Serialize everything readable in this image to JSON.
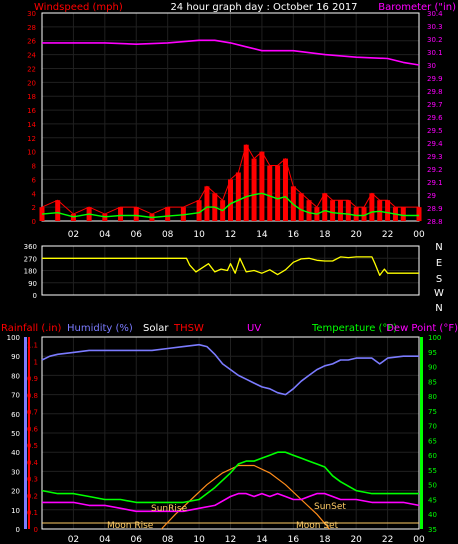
{
  "title": "24 hour graph day : October 16 2017",
  "colors": {
    "wind": "#ff0000",
    "gust": "#ff0000",
    "windavg": "#00ff00",
    "barometer": "#ff00ff",
    "direction": "#ffff00",
    "rain": "#ff0000",
    "humidity": "#7b7bff",
    "solar": "#ffffff",
    "thsw": "#ff0000",
    "uv": "#ff00ff",
    "temperature": "#00ff00",
    "dewpoint": "#ff00ff",
    "sun": "#ff8c1a",
    "frame": "#ffffff",
    "grid": "#202020"
  },
  "time_ticks": [
    "02",
    "04",
    "06",
    "08",
    "10",
    "12",
    "14",
    "16",
    "18",
    "20",
    "22",
    "00"
  ],
  "chart_data": [
    {
      "type": "line",
      "name": "wind-barometer",
      "left_label": "Windspeed (mph)",
      "right_label": "Barometer (\"in)",
      "left_ticks": [
        "0",
        "2",
        "4",
        "6",
        "8",
        "10",
        "12",
        "14",
        "16",
        "18",
        "20",
        "22",
        "24",
        "26",
        "28",
        "30"
      ],
      "right_ticks": [
        "28.8",
        "28.9",
        "29",
        "29.1",
        "29.2",
        "29.3",
        "29.4",
        "29.5",
        "29.6",
        "29.7",
        "29.8",
        "29.9",
        "30",
        "30.1",
        "30.2",
        "30.3",
        "30.4"
      ],
      "x_range": [
        0,
        24
      ],
      "wind_range": [
        0,
        30
      ],
      "baro_range": [
        28.8,
        30.4
      ],
      "series": [
        {
          "name": "Barometer",
          "axis": "right",
          "hours": [
            0,
            2,
            4,
            6,
            8,
            10,
            11,
            12,
            13,
            14,
            16,
            18,
            20,
            22,
            23,
            24
          ],
          "values": [
            30.17,
            30.17,
            30.17,
            30.16,
            30.17,
            30.19,
            30.19,
            30.17,
            30.14,
            30.11,
            30.11,
            30.08,
            30.06,
            30.05,
            30.02,
            30.0
          ]
        },
        {
          "name": "Gust",
          "axis": "left",
          "hours": [
            0,
            1,
            2,
            3,
            4,
            5,
            6,
            7,
            8,
            9,
            10,
            10.5,
            11,
            11.5,
            12,
            12.5,
            13,
            13.5,
            14,
            14.5,
            15,
            15.5,
            16,
            16.5,
            17,
            17.5,
            18,
            18.5,
            19,
            19.5,
            20,
            20.5,
            21,
            21.5,
            22,
            22.5,
            23,
            24
          ],
          "values": [
            2,
            3,
            1,
            2,
            1,
            2,
            2,
            1,
            2,
            2,
            3,
            5,
            4,
            3,
            6,
            7,
            11,
            9,
            10,
            8,
            8,
            9,
            5,
            4,
            3,
            2,
            4,
            3,
            3,
            3,
            2,
            2,
            4,
            3,
            3,
            2,
            2,
            2
          ]
        },
        {
          "name": "Wind average",
          "axis": "left",
          "hours": [
            0,
            1,
            2,
            3,
            4,
            5,
            6,
            7,
            8,
            9,
            10,
            10.5,
            11,
            11.5,
            12,
            12.5,
            13,
            13.5,
            14,
            14.5,
            15,
            15.5,
            16,
            16.5,
            17,
            17.5,
            18,
            18.5,
            19,
            19.5,
            20,
            20.5,
            21,
            21.5,
            22,
            22.5,
            23,
            24
          ],
          "values": [
            1,
            1.2,
            0.6,
            1,
            0.6,
            0.8,
            0.8,
            0.5,
            0.7,
            0.9,
            1.2,
            2,
            2,
            1.5,
            2.5,
            3,
            3.5,
            3.8,
            4,
            3.6,
            3.2,
            3.5,
            2.4,
            1.6,
            1.2,
            1,
            1.5,
            1.2,
            1.1,
            1,
            0.8,
            0.8,
            1.3,
            1.4,
            1.2,
            1,
            0.8,
            0.8
          ]
        }
      ]
    },
    {
      "type": "line",
      "name": "wind-direction",
      "left_ticks": [
        "0",
        "90",
        "180",
        "270",
        "360"
      ],
      "right_ticks": [
        "N",
        "W",
        "S",
        "E",
        "N"
      ],
      "x_range": [
        0,
        24
      ],
      "y_range": [
        0,
        360
      ],
      "series": [
        {
          "name": "Wind direction",
          "hours": [
            0,
            9.2,
            9.4,
            9.8,
            10.2,
            10.6,
            11,
            11.4,
            11.8,
            12,
            12.3,
            12.6,
            13,
            13.5,
            14,
            14.5,
            15,
            15.5,
            16,
            16.5,
            17,
            17.5,
            18,
            18.5,
            19,
            19.5,
            20,
            20.5,
            21,
            21.2,
            21.5,
            21.8,
            22,
            24
          ],
          "values": [
            270,
            270,
            220,
            170,
            200,
            230,
            170,
            190,
            180,
            230,
            160,
            270,
            170,
            180,
            160,
            185,
            150,
            185,
            240,
            265,
            270,
            255,
            250,
            250,
            280,
            275,
            280,
            280,
            280,
            230,
            145,
            190,
            160,
            160
          ]
        }
      ]
    },
    {
      "type": "line",
      "name": "humidity-temperature",
      "legend": [
        "Rainfall (.in)",
        "Humidity (%)",
        "Solar",
        "THSW",
        "UV",
        "Temperature (°F)",
        "Dew Point (°F)"
      ],
      "left_outer_ticks": [
        "0",
        "10",
        "20",
        "30",
        "40",
        "50",
        "60",
        "70",
        "80",
        "90",
        "100"
      ],
      "left_inner_ticks": [
        "0",
        "0.1",
        "0.2",
        "0.3",
        "0.4",
        "0.5",
        "0.6",
        "0.7",
        "0.8",
        "0.9",
        "1",
        "1.1"
      ],
      "right_ticks": [
        "35",
        "40",
        "45",
        "50",
        "55",
        "60",
        "65",
        "70",
        "75",
        "80",
        "85",
        "90",
        "95",
        "100"
      ],
      "x_range": [
        0,
        24
      ],
      "humidity_range": [
        0,
        100
      ],
      "temp_range": [
        35,
        100
      ],
      "annotations": [
        "SunRise",
        "SunSet",
        "Moon Rise",
        "Moon Set"
      ],
      "series": [
        {
          "name": "Humidity",
          "axis": "humidity",
          "hours": [
            0,
            0.5,
            1,
            2,
            3,
            4,
            5,
            6,
            7,
            8,
            9,
            10,
            10.5,
            11,
            11.5,
            12,
            12.5,
            13,
            13.5,
            14,
            14.5,
            15,
            15.5,
            16,
            16.5,
            17,
            17.5,
            18,
            18.5,
            19,
            19.5,
            20,
            21,
            21.5,
            22,
            23,
            24
          ],
          "values": [
            88,
            90,
            91,
            92,
            93,
            93,
            93,
            93,
            93,
            94,
            95,
            96,
            95,
            91,
            86,
            83,
            80,
            78,
            76,
            74,
            73,
            71,
            70,
            73,
            77,
            80,
            83,
            85,
            86,
            88,
            88,
            89,
            89,
            86,
            89,
            90,
            90
          ]
        },
        {
          "name": "Temperature",
          "axis": "temp",
          "hours": [
            0,
            1,
            2,
            3,
            4,
            5,
            6,
            7,
            8,
            9,
            10,
            11,
            12,
            12.5,
            13,
            13.5,
            14,
            14.5,
            15,
            15.5,
            16,
            16.5,
            17,
            17.5,
            18,
            18.5,
            19,
            20,
            21,
            22,
            23,
            24
          ],
          "values": [
            48,
            47,
            47,
            46,
            45,
            45,
            44,
            44,
            44,
            44,
            45,
            49,
            54,
            57,
            58,
            58,
            59,
            60,
            61,
            61,
            60,
            59,
            58,
            57,
            56,
            53,
            51,
            48,
            47,
            47,
            47,
            47
          ]
        },
        {
          "name": "Dew Point",
          "axis": "temp",
          "hours": [
            0,
            1,
            2,
            3,
            4,
            5,
            6,
            7,
            8,
            9,
            10,
            11,
            12,
            12.5,
            13,
            13.5,
            14,
            14.5,
            15,
            15.5,
            16,
            16.5,
            17,
            17.5,
            18,
            18.5,
            19,
            20,
            21,
            22,
            23,
            24
          ],
          "values": [
            44,
            44,
            44,
            43,
            43,
            42,
            41,
            41,
            41,
            41,
            42,
            43,
            46,
            47,
            47,
            46,
            47,
            46,
            47,
            46,
            45,
            45,
            46,
            47,
            47,
            46,
            45,
            45,
            44,
            44,
            44,
            43
          ]
        },
        {
          "name": "Sun arc",
          "axis": "temp",
          "hours": [
            7.6,
            8.5,
            9.5,
            10.5,
            11.5,
            12.5,
            13.5,
            14.5,
            15.5,
            16.5,
            17.5,
            18.3
          ],
          "values": [
            35,
            40,
            45,
            50,
            54,
            56.5,
            56.5,
            54,
            50,
            45,
            40,
            35
          ]
        }
      ]
    }
  ]
}
